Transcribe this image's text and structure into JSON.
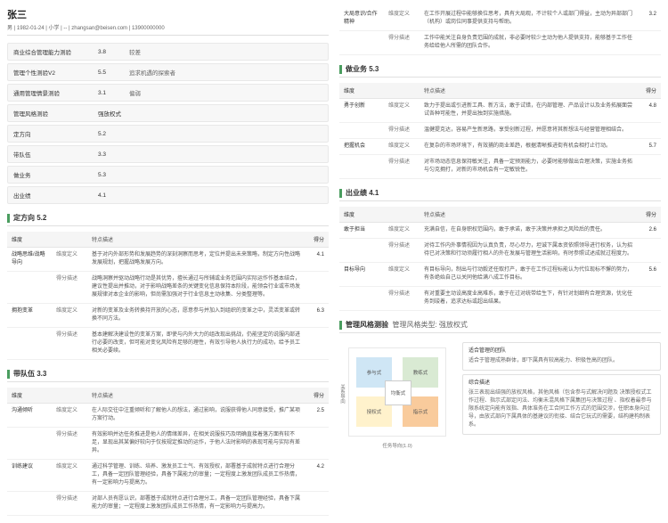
{
  "header": {
    "name": "张三",
    "info": "男 | 1982-01-24 | 小学 | -- | zhangsan@beisen.com | 13900000000"
  },
  "summary": [
    {
      "n": "商业综合管理能力测验",
      "s": "3.8",
      "r": "较差"
    },
    {
      "n": "管理个性测验V2",
      "s": "5.5",
      "r": "追求机遇的探索者"
    },
    {
      "n": "通用管理情景测验",
      "s": "3.1",
      "r": "偏弱"
    },
    {
      "n": "管理风格测验",
      "s": "强放权式",
      "r": ""
    },
    {
      "n": "定方向",
      "s": "5.2",
      "r": ""
    },
    {
      "n": "带队伍",
      "s": "3.3",
      "r": ""
    },
    {
      "n": "做业务",
      "s": "5.3",
      "r": ""
    },
    {
      "n": "出业绩",
      "s": "4.1",
      "r": ""
    }
  ],
  "s1": {
    "title": "定方向 5.2",
    "cols": [
      "维度",
      "",
      "特点描述",
      "得分"
    ],
    "rows": [
      [
        "战略思维/战略导向",
        "维度定义",
        "基于对内外部形势和发展趋势的深刻洞察而思考，定位并提出未来策略，制定方向性战略发展规划，把握战略发展方向。",
        "4.1"
      ],
      [
        "",
        "得分描述",
        "战略洞察并驱动战略行动是其优势，擅长通过与所辅或业务范围内实际运作作基本结合，建议性提出并推动，对于影响战略差条的关键变化信息保持本阶段，能领会行业或市场发展规律对本企业的影响，但尚需加强对于行业信息主动收集、分类整理等。",
        ""
      ],
      [
        "拥抱变革",
        "维度定义",
        "对新的变革及业务转换持开放的心态，愿意参与并加入到组织的变革之中，灵活变革或转换不同方法。",
        "6.3"
      ],
      [
        "",
        "得分描述",
        "基本建解决建设性的变革方案，即使与内外大力的组改现出挑战，仍能坚定的说服内部进行必要的改变，但可能对变化风险有足够的理性，有效引导他人执行力的成功，给予员工相关必要续。",
        ""
      ]
    ]
  },
  "s2": {
    "title": "带队伍 3.3",
    "cols": [
      "维度",
      "",
      "特点描述",
      "得分"
    ],
    "rows": [
      [
        "沟通倾听",
        "维度定义",
        "在人际交往中注重倾听和了解他人的想法，通过影响，说服获得他人同意接受，推广某项方案行动。",
        "2.5"
      ],
      [
        "",
        "得分描述",
        "有效影响并达任务推进是他人的情绪差异，在相关说服技巧及明确直接着落方面有较不足，显现出其某偏好较向于仅按规定推动的运作，于他人法时影响的表现可能与实际有差异。",
        ""
      ],
      [
        "训练建议",
        "维度定义",
        "通过科学管理、训练、培养、激发员工士气、有效授权，部署基于成就特点进行合理分工，具备一定团队管理经验，具备下属能力的审量；一定程度上激发团队成员工作热情，有一定影响力与提高力。",
        "4.2"
      ],
      [
        "",
        "得分描述",
        "对部人员有愿认识，部署基于成就特点进行合理分工，具备一定团队管理经验，具备下属能力的审量；一定程度上激发团队成员工作热情，有一定影响力与提高力。",
        ""
      ]
    ]
  },
  "rightTop": [
    [
      "大局意识/合作精神",
      "维度定义",
      "在工作开展过程中能够换位思考，具有大局观，不计较个人或部门得益，主动为异部部门（机构）或岗位同事提供支持与帮助。",
      "3.2"
    ],
    [
      "",
      "得分描述",
      "工作中能关注自身负责范围的成就，非必要时较少主动为他人提供支持，能够基于工作任务给给他人所需的团队合作。",
      ""
    ]
  ],
  "s3": {
    "title": "做业务 5.3",
    "cols": [
      "维度",
      "",
      "特点描述",
      "得分"
    ],
    "rows": [
      [
        "勇于创新",
        "维度定义",
        "致力于提出或引进新工具、新方法，敢于试错，在内部管理、产品设计以及业务拓展面尝试各种可能性，并提出独到实施措施。",
        "4.8"
      ],
      [
        "",
        "得分描述",
        "温健提克达，容易产生新思路，享受创新过程，并愿意将其新想法与经营管理相结合。",
        ""
      ],
      [
        "把握机会",
        "维度定义",
        "在复杂的市场环境下，有效捕的商业差趋，根据清晰推进街有机会相打止行动。",
        "5.7"
      ],
      [
        "",
        "得分描述",
        "对市场动态信息保持敏关注，具备一定预测能力，必要时能够做出合理决策，实施业务拓与匀克拥打，对新的市场机会有一定敏锐性。",
        ""
      ]
    ]
  },
  "s4": {
    "title": "出业绩 4.1",
    "cols": [
      "维度",
      "",
      "特点描述",
      "得分"
    ],
    "rows": [
      [
        "敢于担当",
        "维度定义",
        "充满自信，在自身职权范围内，敢于承诺，敢于决策并承担之风险后的责任。",
        "2.6"
      ],
      [
        "",
        "得分描述",
        "对待工作内外事情视因为认真负责，尽心尽力，坦诚下属本资依照领导进行权务，认为招待已对决策和行动须履行相人的外在发展与管理生活影响，有时参照试述成就过程度力。",
        ""
      ],
      [
        "目标导向",
        "维度定义",
        "有目标导向，制出与行动毅还任取打产，敢于在工作过程标能认为代位现标不懈的努力，有条绝始自己以关同他给满八成工作目标。",
        "5.6"
      ],
      [
        "",
        "得分描述",
        "有对重要主动设高度业高难系，敢于在过对统带给生下，有针对划细有合理资源，优化任务到竣着，追求达标或超出结果。",
        ""
      ]
    ]
  },
  "risk": {
    "title": "管理风格测验",
    "sub": "管理风格类型: 强放权式",
    "q": {
      "tl": "参与式",
      "tr": "教练式",
      "bl": "授权式",
      "br": "指示式",
      "c": "均衡式"
    },
    "axisX": "任务导向(1.0)",
    "axisY": "关系导向",
    "d1": {
      "t": "适合管理的团队",
      "x": "适合于管理成熟群体，即下属具有较高能力、积极性高的团队。"
    },
    "d2": {
      "t": "综合描述",
      "x": "张三表现出结强的放权风格，其他风格（包含参与式解决问题及 决策授权式工作过程、指示式部定问法、均衡未混风格下属集团与决策过程 、指权着最参与限系统定向能有效指、具体准务在工合同工作方式的范围交涉，任职本身向过导，由放式部向下属具体的基建议的衔接、结合它玩式的需要，结构建构制表系。"
    }
  }
}
